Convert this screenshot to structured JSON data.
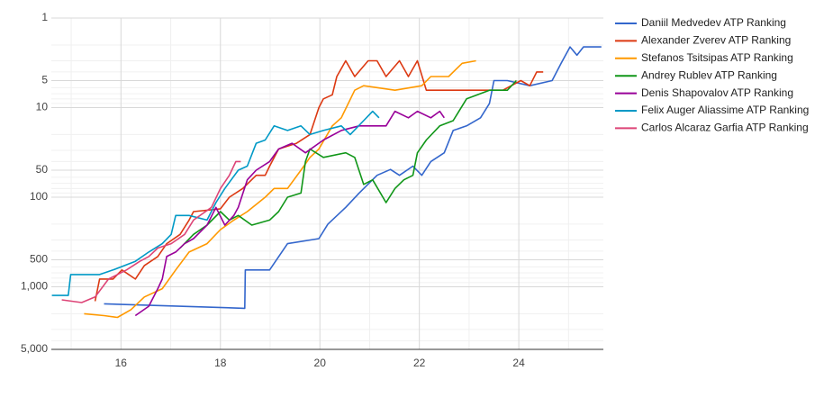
{
  "chart_data": {
    "type": "line",
    "y_scale": "log",
    "y_reversed": true,
    "grid": true,
    "minor_grid": true,
    "legend": "right",
    "xlim": [
      14.6,
      25.7
    ],
    "xticks": [
      16,
      18,
      20,
      22,
      24
    ],
    "ylim": [
      1,
      5000
    ],
    "yticks": [
      1,
      5,
      10,
      50,
      100,
      500,
      {
        "value": 1000,
        "label": "1,000"
      },
      {
        "value": 5000,
        "label": "5,000"
      }
    ],
    "series": [
      {
        "name": "Daniil Medvedev ATP Ranking",
        "color": "#3366cc",
        "x": [
          15.66,
          18.49,
          18.5,
          18.99,
          19.35,
          19.98,
          20.16,
          20.52,
          20.79,
          21.15,
          21.42,
          21.6,
          21.87,
          22.05,
          22.23,
          22.5,
          22.68,
          22.95,
          23.23,
          23.41,
          23.5,
          23.77,
          24.22,
          24.67,
          24.85,
          25.03,
          25.17,
          25.3,
          25.66
        ],
        "values": [
          1550,
          1740,
          650,
          650,
          330,
          290,
          200,
          130,
          90,
          57,
          49,
          57,
          45,
          57,
          40,
          32,
          18,
          16,
          13,
          9,
          5,
          5,
          5.7,
          5,
          3.2,
          2.1,
          2.6,
          2.1,
          2.1
        ]
      },
      {
        "name": "Alexander Zverev ATP Ranking",
        "color": "#dc3912",
        "x": [
          15.48,
          15.57,
          15.84,
          16.02,
          16.29,
          16.47,
          16.74,
          16.92,
          17.19,
          17.37,
          17.46,
          18.0,
          18.18,
          18.45,
          18.72,
          18.9,
          18.99,
          19.17,
          19.53,
          19.8,
          19.98,
          20.07,
          20.25,
          20.34,
          20.52,
          20.7,
          20.97,
          21.15,
          21.33,
          21.6,
          21.78,
          21.96,
          22.14,
          22.41,
          23.68,
          24.04,
          24.22,
          24.36,
          24.49
        ],
        "values": [
          1450,
          820,
          820,
          650,
          820,
          580,
          460,
          330,
          260,
          180,
          145,
          135,
          100,
          80,
          57,
          57,
          45,
          29,
          25,
          20,
          10,
          8,
          7.2,
          4.5,
          3,
          4.5,
          3,
          3,
          4.5,
          3,
          4.5,
          3,
          6.4,
          6.4,
          6.4,
          5,
          5.7,
          4,
          4
        ]
      },
      {
        "name": "Stefanos Tsitsipas ATP Ranking",
        "color": "#ff9900",
        "x": [
          15.26,
          15.66,
          15.93,
          16.2,
          16.47,
          16.83,
          17.1,
          17.37,
          17.73,
          18.0,
          18.27,
          18.54,
          18.9,
          19.08,
          19.35,
          19.62,
          19.8,
          19.98,
          20.25,
          20.43,
          20.7,
          20.88,
          21.51,
          22.05,
          22.23,
          22.59,
          22.86,
          23.14
        ],
        "values": [
          2000,
          2100,
          2200,
          1800,
          1300,
          1050,
          650,
          410,
          330,
          230,
          180,
          145,
          100,
          80,
          80,
          50,
          36,
          29,
          16,
          13,
          6.4,
          5.7,
          6.4,
          5.7,
          4.5,
          4.5,
          3.2,
          3
        ]
      },
      {
        "name": "Andrey Rublev ATP Ranking",
        "color": "#109618",
        "x": [
          17.19,
          17.46,
          17.73,
          18.0,
          18.18,
          18.36,
          18.63,
          18.99,
          19.17,
          19.35,
          19.62,
          19.71,
          19.8,
          20.07,
          20.52,
          20.7,
          20.88,
          21.06,
          21.33,
          21.51,
          21.69,
          21.87,
          21.96,
          22.14,
          22.41,
          22.68,
          22.95,
          23.41,
          23.77,
          23.95
        ],
        "values": [
          370,
          260,
          205,
          145,
          180,
          160,
          205,
          180,
          145,
          100,
          90,
          40,
          29,
          36,
          32,
          36,
          72,
          64,
          115,
          80,
          64,
          57,
          32,
          23,
          16,
          14,
          8,
          6.4,
          6.4,
          5
        ]
      },
      {
        "name": "Denis Shapovalov ATP Ranking",
        "color": "#990099",
        "x": [
          16.29,
          16.56,
          16.74,
          16.83,
          16.92,
          17.1,
          17.28,
          17.46,
          17.73,
          17.91,
          18.09,
          18.27,
          18.36,
          18.54,
          18.72,
          18.99,
          19.17,
          19.44,
          19.71,
          20.07,
          20.43,
          20.79,
          21.33,
          21.51,
          21.78,
          21.96,
          22.23,
          22.41,
          22.5
        ],
        "values": [
          2100,
          1650,
          1050,
          820,
          460,
          410,
          330,
          290,
          205,
          130,
          205,
          160,
          130,
          64,
          50,
          40,
          29,
          25,
          32,
          23,
          18,
          16,
          16,
          11,
          13,
          11,
          13,
          11,
          13
        ]
      },
      {
        "name": "Felix Auger Aliassime ATP Ranking",
        "color": "#0099c6",
        "x": [
          14.61,
          14.94,
          14.99,
          15.57,
          15.84,
          16.29,
          16.56,
          16.83,
          17.01,
          17.1,
          17.37,
          17.73,
          17.91,
          18.09,
          18.36,
          18.54,
          18.72,
          18.9,
          19.08,
          19.35,
          19.62,
          19.8,
          20.07,
          20.43,
          20.61,
          20.88,
          21.06,
          21.19
        ],
        "values": [
          1250,
          1250,
          730,
          730,
          650,
          520,
          410,
          330,
          260,
          160,
          160,
          180,
          115,
          80,
          50,
          45,
          25,
          23,
          16,
          18,
          16,
          20,
          18,
          16,
          20,
          14,
          11,
          13
        ]
      },
      {
        "name": "Carlos Alcaraz Garfia ATP Ranking",
        "color": "#dd4477",
        "x": [
          14.81,
          15.21,
          15.48,
          15.75,
          16.11,
          16.38,
          16.56,
          16.74,
          17.01,
          17.28,
          17.46,
          17.82,
          18.0,
          18.18,
          18.31,
          18.41
        ],
        "values": [
          1400,
          1500,
          1300,
          820,
          650,
          520,
          460,
          370,
          330,
          260,
          180,
          130,
          80,
          57,
          40,
          40
        ]
      }
    ]
  }
}
